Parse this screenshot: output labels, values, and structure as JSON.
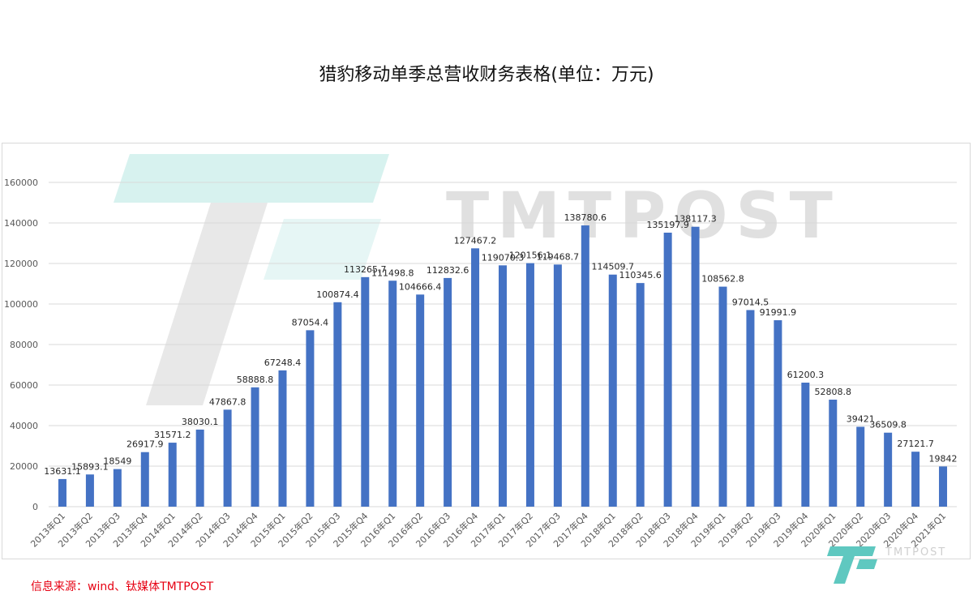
{
  "title": "猎豹移动单季总营收财务表格(单位：万元)",
  "source_note": "信息来源：wind、钛媒体TMTPOST",
  "watermark": {
    "brand": "TMTPOST",
    "brand_cn": "钛媒体"
  },
  "colors": {
    "bar": "#4472c4",
    "grid": "#d9d9d9",
    "axis_text": "#595959",
    "source": "#e60012",
    "watermark": "#5fc8c0"
  },
  "chart_data": {
    "type": "bar",
    "title": "猎豹移动单季总营收财务表格(单位：万元)",
    "xlabel": "",
    "ylabel": "",
    "ylim": [
      0,
      160000
    ],
    "yticks": [
      0,
      20000,
      40000,
      60000,
      80000,
      100000,
      120000,
      140000,
      160000
    ],
    "grid": true,
    "legend": "none",
    "categories": [
      "2013年Q1",
      "2013年Q2",
      "2013年Q3",
      "2013年Q4",
      "2014年Q1",
      "2014年Q2",
      "2014年Q3",
      "2014年Q4",
      "2015年Q1",
      "2015年Q2",
      "2015年Q3",
      "2015年Q4",
      "2016年Q1",
      "2016年Q2",
      "2016年Q3",
      "2016年Q4",
      "2017年Q1",
      "2017年Q2",
      "2017年Q3",
      "2017年Q4",
      "2018年Q1",
      "2018年Q2",
      "2018年Q3",
      "2018年Q4",
      "2019年Q1",
      "2019年Q2",
      "2019年Q3",
      "2019年Q4",
      "2020年Q1",
      "2020年Q2",
      "2020年Q3",
      "2020年Q4",
      "2021年Q1"
    ],
    "values": [
      13631.1,
      15893.1,
      18549,
      26917.9,
      31571.2,
      38030.1,
      47867.8,
      58888.8,
      67248.4,
      87054.4,
      100874.4,
      113265.7,
      111498.8,
      104666.4,
      112832.6,
      127467.2,
      119070.3,
      120156.1,
      119468.7,
      138780.6,
      114509.7,
      110345.6,
      135197.9,
      138117.3,
      108562.8,
      97014.5,
      91991.9,
      61200.3,
      52808.8,
      39421,
      36509.8,
      27121.7,
      19842
    ],
    "data_labels": [
      "13631.1",
      "15893.1",
      "18549",
      "26917.9",
      "31571.2",
      "38030.1",
      "47867.8",
      "58888.8",
      "67248.4",
      "87054.4",
      "100874.4",
      "113265.7",
      "111498.8",
      "104666.4",
      "112832.6",
      "127467.2",
      "119070.3",
      "120156.1",
      "119468.7",
      "138780.6",
      "114509.7",
      "110345.6",
      "135197.9",
      "138117.3",
      "108562.8",
      "97014.5",
      "91991.9",
      "61200.3",
      "52808.8",
      "39421",
      "36509.8",
      "27121.7",
      "19842"
    ]
  }
}
